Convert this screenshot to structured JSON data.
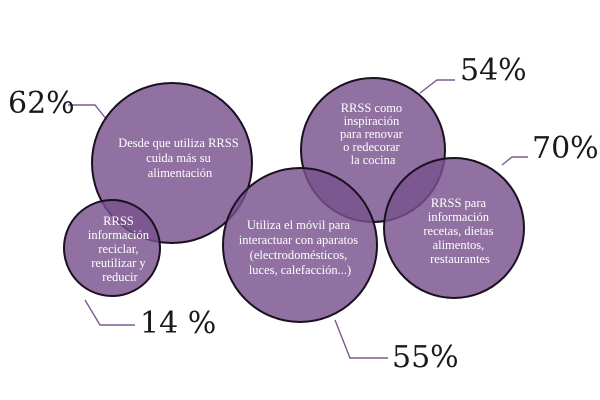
{
  "bubbles": [
    {
      "label_lines": [
        "Desde que utiliza RRSS",
        "cuida más su",
        "alimentación"
      ],
      "percent": "62%"
    },
    {
      "label_lines": [
        "RRSS",
        "información",
        "reciclar,",
        "reutilizar y",
        "reducir"
      ],
      "percent": "14 %"
    },
    {
      "label_lines": [
        "RRSS como",
        "inspiración",
        "para renovar",
        "o redecorar",
        "la cocina"
      ],
      "percent": "54%"
    },
    {
      "label_lines": [
        "RRSS para",
        "información",
        "recetas, dietas",
        "alimentos,",
        "restaurantes"
      ],
      "percent": "70%"
    },
    {
      "label_lines": [
        "Utiliza el móvil para",
        "interactuar con aparatos",
        "(electrodomésticos,",
        "luces, calefacción...)"
      ],
      "percent": "55%"
    }
  ]
}
